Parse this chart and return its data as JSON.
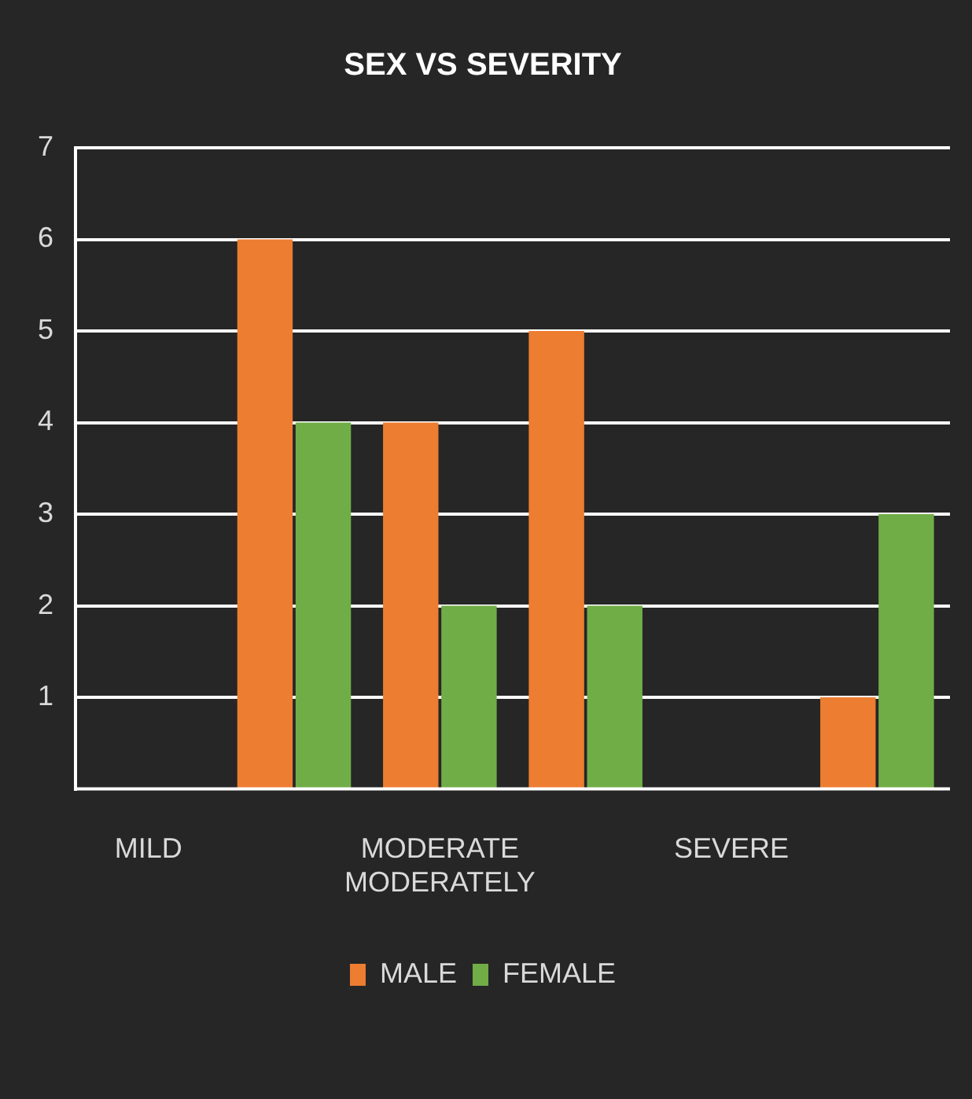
{
  "chart_data": {
    "type": "bar",
    "title": "SEX VS SEVERITY",
    "categories": [
      "MILD",
      null,
      "MODERATE MODERATELY",
      null,
      "SEVERE",
      null
    ],
    "series": [
      {
        "name": "MALE",
        "color": "#ed7d31",
        "values": [
          null,
          6,
          4,
          5,
          null,
          1
        ]
      },
      {
        "name": "FEMALE",
        "color": "#70ad47",
        "values": [
          null,
          4,
          2,
          2,
          null,
          3
        ]
      }
    ],
    "ylim": [
      0,
      7
    ],
    "yticks": [
      1,
      2,
      3,
      4,
      5,
      6,
      7
    ],
    "grid": "y",
    "legend": "bottom"
  }
}
